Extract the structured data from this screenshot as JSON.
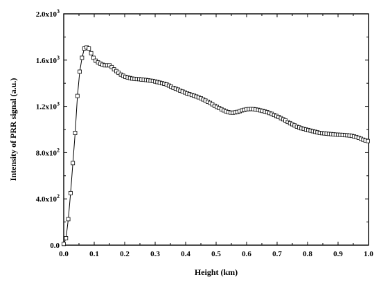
{
  "chart_data": {
    "type": "line",
    "title": "",
    "xlabel": "Height (km)",
    "ylabel": "Intensity of PRR signal (a.u.)",
    "xlim": [
      0.0,
      1.0
    ],
    "ylim": [
      0,
      2000
    ],
    "grid": false,
    "marker": "open-square",
    "line_color": "#000000",
    "x_ticks": [
      {
        "value": 0.0,
        "label": "0.0"
      },
      {
        "value": 0.1,
        "label": "0.1"
      },
      {
        "value": 0.2,
        "label": "0.2"
      },
      {
        "value": 0.3,
        "label": "0.3"
      },
      {
        "value": 0.4,
        "label": "0.4"
      },
      {
        "value": 0.5,
        "label": "0.5"
      },
      {
        "value": 0.6,
        "label": "0.6"
      },
      {
        "value": 0.7,
        "label": "0.7"
      },
      {
        "value": 0.8,
        "label": "0.8"
      },
      {
        "value": 0.9,
        "label": "0.9"
      },
      {
        "value": 1.0,
        "label": "1.0"
      }
    ],
    "y_ticks": [
      {
        "value": 0,
        "mant": "0.0",
        "exp": ""
      },
      {
        "value": 400,
        "mant": "4.0x10",
        "exp": "2"
      },
      {
        "value": 800,
        "mant": "8.0x10",
        "exp": "2"
      },
      {
        "value": 1200,
        "mant": "1.2x10",
        "exp": "3"
      },
      {
        "value": 1600,
        "mant": "1.6x10",
        "exp": "3"
      },
      {
        "value": 2000,
        "mant": "2.0x10",
        "exp": "3"
      }
    ],
    "series": [
      {
        "x": [
          0.0,
          0.0075,
          0.015,
          0.0225,
          0.03,
          0.0375,
          0.045,
          0.0525,
          0.06,
          0.0675,
          0.075,
          0.0825,
          0.09,
          0.0975,
          0.105,
          0.1125,
          0.12,
          0.1275,
          0.135,
          0.1425,
          0.15,
          0.1575,
          0.165,
          0.1725,
          0.18,
          0.1875,
          0.195,
          0.2025,
          0.21,
          0.2175,
          0.225,
          0.2325,
          0.24,
          0.2475,
          0.255,
          0.2625,
          0.27,
          0.2775,
          0.285,
          0.2925,
          0.3,
          0.3075,
          0.315,
          0.3225,
          0.33,
          0.3375,
          0.345,
          0.3525,
          0.36,
          0.3675,
          0.375,
          0.3825,
          0.39,
          0.3975,
          0.405,
          0.4125,
          0.42,
          0.4275,
          0.435,
          0.4425,
          0.45,
          0.4575,
          0.465,
          0.4725,
          0.48,
          0.4875,
          0.495,
          0.5025,
          0.51,
          0.5175,
          0.525,
          0.5325,
          0.54,
          0.5475,
          0.555,
          0.5625,
          0.57,
          0.5775,
          0.585,
          0.5925,
          0.6,
          0.6075,
          0.615,
          0.6225,
          0.63,
          0.6375,
          0.645,
          0.6525,
          0.66,
          0.6675,
          0.675,
          0.6825,
          0.69,
          0.6975,
          0.705,
          0.7125,
          0.72,
          0.7275,
          0.735,
          0.7425,
          0.75,
          0.7575,
          0.765,
          0.7725,
          0.78,
          0.7875,
          0.795,
          0.8025,
          0.81,
          0.8175,
          0.825,
          0.8325,
          0.84,
          0.8475,
          0.855,
          0.8625,
          0.87,
          0.8775,
          0.885,
          0.8925,
          0.9,
          0.9075,
          0.915,
          0.9225,
          0.93,
          0.9375,
          0.945,
          0.9525,
          0.96,
          0.9675,
          0.975,
          0.9825,
          0.99,
          0.9975
        ],
        "y": [
          10,
          60,
          225,
          450,
          710,
          970,
          1290,
          1500,
          1620,
          1700,
          1710,
          1700,
          1660,
          1620,
          1595,
          1580,
          1570,
          1560,
          1555,
          1555,
          1555,
          1540,
          1520,
          1505,
          1490,
          1475,
          1465,
          1455,
          1450,
          1445,
          1440,
          1438,
          1436,
          1435,
          1432,
          1430,
          1428,
          1425,
          1422,
          1420,
          1415,
          1410,
          1405,
          1400,
          1395,
          1390,
          1380,
          1370,
          1360,
          1352,
          1345,
          1335,
          1328,
          1320,
          1312,
          1305,
          1298,
          1292,
          1285,
          1278,
          1270,
          1260,
          1250,
          1240,
          1230,
          1218,
          1205,
          1195,
          1185,
          1175,
          1165,
          1157,
          1150,
          1146,
          1145,
          1148,
          1152,
          1158,
          1165,
          1170,
          1175,
          1176,
          1177,
          1176,
          1173,
          1170,
          1165,
          1160,
          1155,
          1150,
          1142,
          1135,
          1125,
          1117,
          1108,
          1098,
          1088,
          1078,
          1065,
          1055,
          1045,
          1035,
          1025,
          1018,
          1010,
          1005,
          1000,
          995,
          990,
          985,
          980,
          975,
          970,
          968,
          966,
          964,
          962,
          960,
          958,
          956,
          955,
          954,
          953,
          951,
          950,
          948,
          945,
          940,
          935,
          928,
          920,
          912,
          905,
          900
        ]
      }
    ]
  }
}
